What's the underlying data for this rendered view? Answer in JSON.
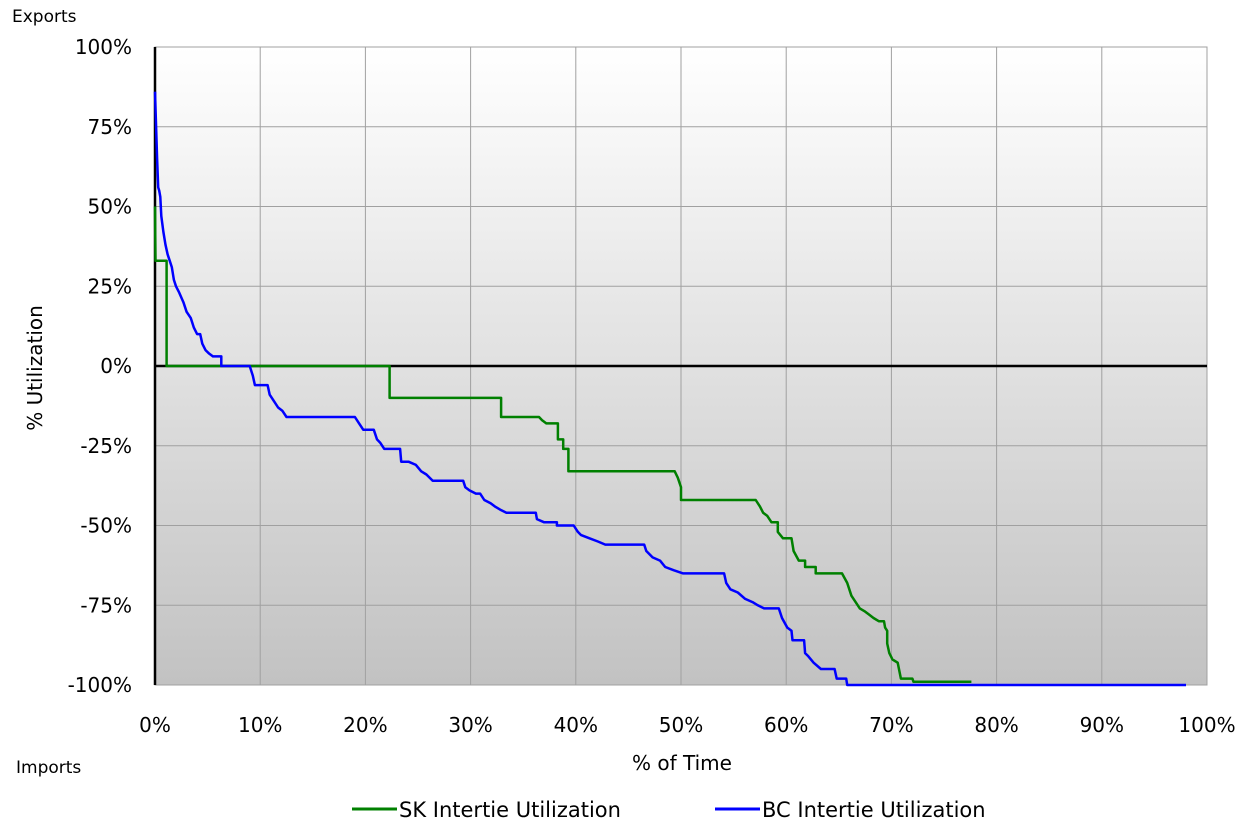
{
  "chart_data": {
    "type": "line",
    "title": "",
    "xlabel": "% of Time",
    "ylabel": "% Utilization",
    "corner_labels": {
      "top": "Exports",
      "bottom": "Imports"
    },
    "xlim": [
      0,
      100
    ],
    "ylim": [
      -100,
      100
    ],
    "x_ticks": [
      0,
      10,
      20,
      30,
      40,
      50,
      60,
      70,
      80,
      90,
      100
    ],
    "x_tick_labels": [
      "0%",
      "10%",
      "20%",
      "30%",
      "40%",
      "50%",
      "60%",
      "70%",
      "80%",
      "90%",
      "100%"
    ],
    "y_ticks": [
      100,
      75,
      50,
      25,
      0,
      -25,
      -50,
      -75,
      -100
    ],
    "y_tick_labels": [
      "100%",
      "75%",
      "50%",
      "25%",
      "0%",
      "-25%",
      "-50%",
      "-75%",
      "-100%"
    ],
    "grid": true,
    "legend_position": "bottom",
    "series": [
      {
        "name": "SK Intertie Utilization",
        "color": "#008000",
        "points": [
          [
            0,
            50
          ],
          [
            0.05,
            33
          ],
          [
            1.1,
            33
          ],
          [
            1.1,
            0
          ],
          [
            22.3,
            0
          ],
          [
            22.3,
            -10
          ],
          [
            32.9,
            -10
          ],
          [
            32.9,
            -16
          ],
          [
            36.5,
            -16
          ],
          [
            36.8,
            -17
          ],
          [
            37.2,
            -18
          ],
          [
            38.3,
            -18
          ],
          [
            38.3,
            -23
          ],
          [
            38.8,
            -23
          ],
          [
            38.8,
            -26
          ],
          [
            39.3,
            -26
          ],
          [
            39.3,
            -33
          ],
          [
            49.4,
            -33
          ],
          [
            49.7,
            -35
          ],
          [
            50,
            -38
          ],
          [
            50,
            -42
          ],
          [
            57.1,
            -42
          ],
          [
            57.5,
            -44
          ],
          [
            57.8,
            -46
          ],
          [
            58.2,
            -47
          ],
          [
            58.6,
            -49
          ],
          [
            59.2,
            -49
          ],
          [
            59.2,
            -52
          ],
          [
            59.7,
            -54
          ],
          [
            60.5,
            -54
          ],
          [
            60.7,
            -58
          ],
          [
            61.2,
            -61
          ],
          [
            61.8,
            -61
          ],
          [
            61.8,
            -63
          ],
          [
            62.8,
            -63
          ],
          [
            62.8,
            -65
          ],
          [
            65.3,
            -65
          ],
          [
            65.8,
            -68
          ],
          [
            66.2,
            -72
          ],
          [
            66.6,
            -74
          ],
          [
            67,
            -76
          ],
          [
            67.5,
            -77
          ],
          [
            67.9,
            -78
          ],
          [
            68.3,
            -79
          ],
          [
            68.8,
            -80
          ],
          [
            69.3,
            -80
          ],
          [
            69.4,
            -82
          ],
          [
            69.6,
            -83
          ],
          [
            69.6,
            -87
          ],
          [
            69.8,
            -90
          ],
          [
            70.1,
            -92
          ],
          [
            70.6,
            -93
          ],
          [
            70.9,
            -98
          ],
          [
            72,
            -98
          ],
          [
            72.1,
            -99
          ],
          [
            77.6,
            -99
          ]
        ]
      },
      {
        "name": "BC Intertie Utilization",
        "color": "#0000ff",
        "points": [
          [
            0,
            86
          ],
          [
            0.1,
            75
          ],
          [
            0.2,
            65
          ],
          [
            0.3,
            56
          ],
          [
            0.4,
            55
          ],
          [
            0.5,
            53
          ],
          [
            0.55,
            50
          ],
          [
            0.6,
            47
          ],
          [
            0.8,
            42
          ],
          [
            1,
            38
          ],
          [
            1.2,
            35
          ],
          [
            1.4,
            33
          ],
          [
            1.6,
            31
          ],
          [
            1.8,
            27
          ],
          [
            2,
            25
          ],
          [
            2.3,
            23
          ],
          [
            2.7,
            20
          ],
          [
            3,
            17
          ],
          [
            3.4,
            15
          ],
          [
            3.7,
            12
          ],
          [
            4,
            10
          ],
          [
            4.3,
            10
          ],
          [
            4.5,
            7
          ],
          [
            4.8,
            5
          ],
          [
            5.1,
            4
          ],
          [
            5.5,
            3
          ],
          [
            6.3,
            3
          ],
          [
            6.3,
            0
          ],
          [
            9,
            0
          ],
          [
            9.3,
            -3
          ],
          [
            9.5,
            -6
          ],
          [
            10.7,
            -6
          ],
          [
            10.9,
            -9
          ],
          [
            11.3,
            -11
          ],
          [
            11.7,
            -13
          ],
          [
            12.1,
            -14
          ],
          [
            12.5,
            -16
          ],
          [
            19,
            -16
          ],
          [
            19.4,
            -18
          ],
          [
            19.8,
            -20
          ],
          [
            20.8,
            -20
          ],
          [
            21.1,
            -23
          ],
          [
            21.4,
            -24
          ],
          [
            21.8,
            -26
          ],
          [
            23.3,
            -26
          ],
          [
            23.4,
            -30
          ],
          [
            24.1,
            -30
          ],
          [
            24.8,
            -31
          ],
          [
            25.3,
            -33
          ],
          [
            25.8,
            -34
          ],
          [
            26.4,
            -36
          ],
          [
            29.3,
            -36
          ],
          [
            29.5,
            -38
          ],
          [
            29.9,
            -39
          ],
          [
            30.5,
            -40
          ],
          [
            30.9,
            -40
          ],
          [
            31.3,
            -42
          ],
          [
            31.9,
            -43
          ],
          [
            32.3,
            -44
          ],
          [
            32.8,
            -45
          ],
          [
            33.4,
            -46
          ],
          [
            36.2,
            -46
          ],
          [
            36.3,
            -48
          ],
          [
            37,
            -49
          ],
          [
            38.2,
            -49
          ],
          [
            38.2,
            -50
          ],
          [
            39.8,
            -50
          ],
          [
            40.2,
            -52
          ],
          [
            40.5,
            -53
          ],
          [
            41.3,
            -54
          ],
          [
            42.1,
            -55
          ],
          [
            42.8,
            -56
          ],
          [
            46.5,
            -56
          ],
          [
            46.7,
            -58
          ],
          [
            47.3,
            -60
          ],
          [
            48,
            -61
          ],
          [
            48.5,
            -63
          ],
          [
            49.3,
            -64
          ],
          [
            50.2,
            -65
          ],
          [
            54.1,
            -65
          ],
          [
            54.3,
            -68
          ],
          [
            54.7,
            -70
          ],
          [
            55.4,
            -71
          ],
          [
            56.1,
            -73
          ],
          [
            56.8,
            -74
          ],
          [
            57.3,
            -75
          ],
          [
            57.9,
            -76
          ],
          [
            59.3,
            -76
          ],
          [
            59.6,
            -79
          ],
          [
            60.1,
            -82
          ],
          [
            60.5,
            -83
          ],
          [
            60.6,
            -86
          ],
          [
            61.7,
            -86
          ],
          [
            61.8,
            -90
          ],
          [
            62.1,
            -91
          ],
          [
            62.6,
            -93
          ],
          [
            63.3,
            -95
          ],
          [
            64.6,
            -95
          ],
          [
            64.8,
            -98
          ],
          [
            65.7,
            -98
          ],
          [
            65.8,
            -100
          ],
          [
            98,
            -100
          ]
        ]
      }
    ]
  }
}
